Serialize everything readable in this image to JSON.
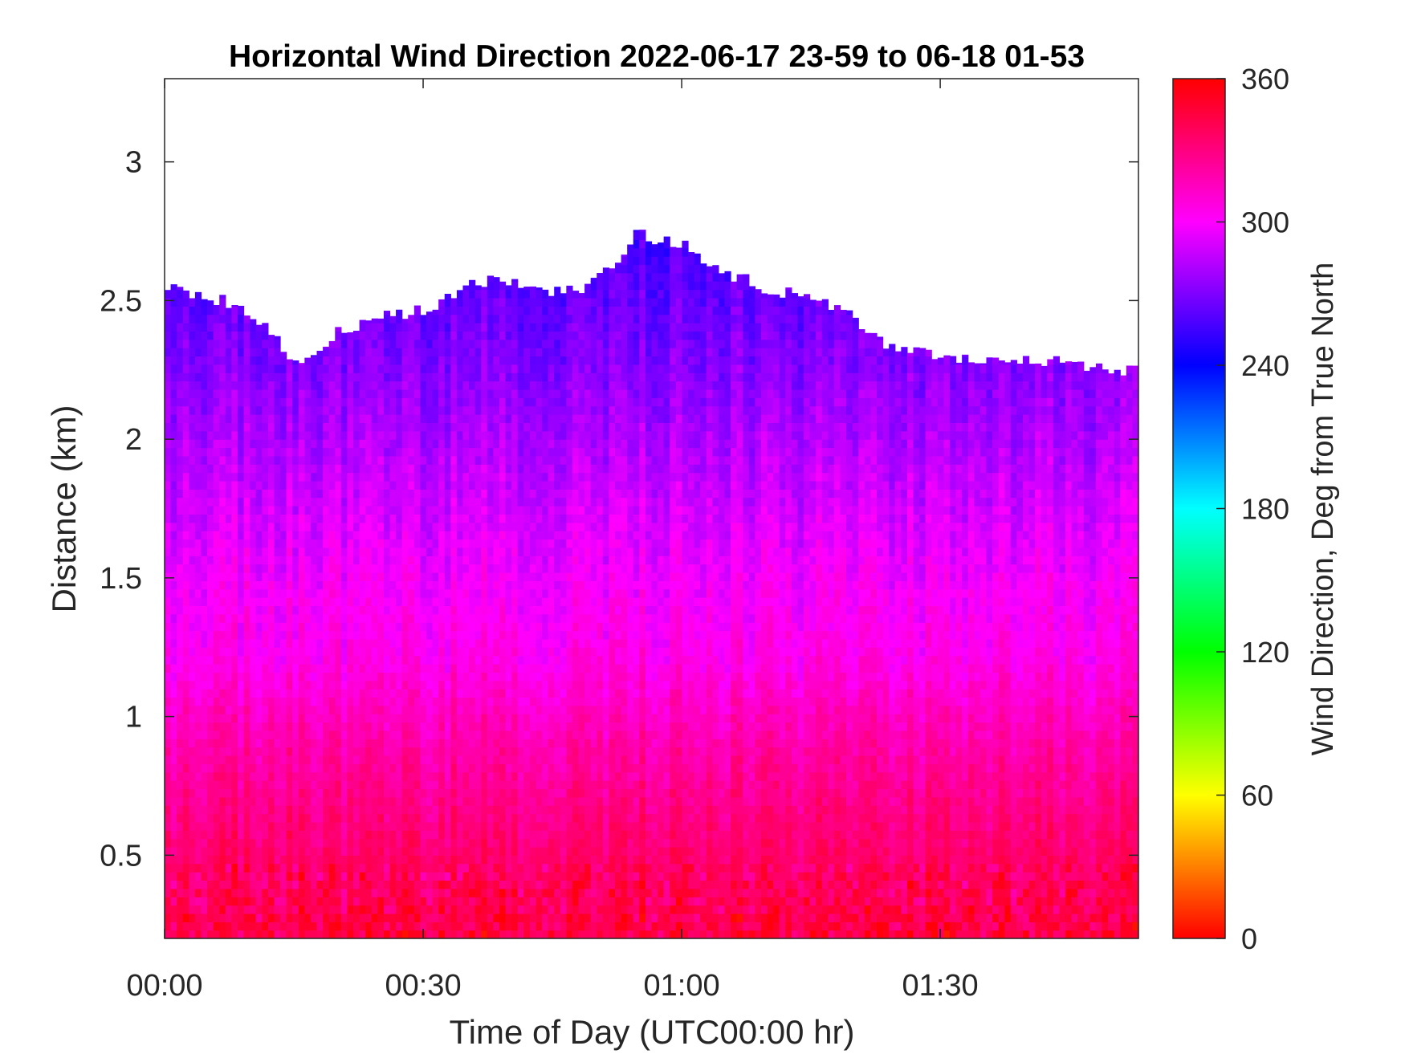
{
  "chart_data": {
    "type": "heatmap",
    "title": "Horizontal Wind Direction 2022-06-17 23-59 to 06-18 01-53",
    "xlabel": "Time of Day (UTC00:00 hr)",
    "ylabel": "Distance (km)",
    "xlim": [
      "00:00",
      "01:53"
    ],
    "ylim": [
      0.2,
      3.3
    ],
    "x_ticks": [
      "00:00",
      "00:30",
      "01:00",
      "01:30"
    ],
    "y_ticks": [
      0.5,
      1,
      1.5,
      2,
      2.5,
      3
    ],
    "y_tick_labels": [
      "0.5",
      "1",
      "1.5",
      "2",
      "2.5",
      "3"
    ],
    "colorbar": {
      "label": "Wind Direction, Deg from True North",
      "range": [
        0,
        360
      ],
      "ticks": [
        0,
        60,
        120,
        180,
        240,
        300,
        360
      ],
      "tick_labels": [
        "0",
        "60",
        "120",
        "180",
        "240",
        "300",
        "360"
      ],
      "colormap": "hsv"
    },
    "data_top_km": {
      "time": [
        "00:00",
        "00:05",
        "00:10",
        "00:15",
        "00:20",
        "00:25",
        "00:30",
        "00:35",
        "00:40",
        "00:45",
        "00:50",
        "00:55",
        "01:00",
        "01:05",
        "01:10",
        "01:15",
        "01:20",
        "01:25",
        "01:30",
        "01:35",
        "01:40",
        "01:45",
        "01:50",
        "01:53"
      ],
      "values": [
        2.54,
        2.52,
        2.46,
        2.28,
        2.38,
        2.45,
        2.46,
        2.55,
        2.58,
        2.53,
        2.56,
        2.74,
        2.7,
        2.6,
        2.54,
        2.52,
        2.44,
        2.32,
        2.3,
        2.28,
        2.3,
        2.27,
        2.26,
        2.24
      ]
    },
    "direction_profile": {
      "distance_km": [
        0.2,
        0.5,
        0.9,
        1.2,
        1.5,
        1.9,
        2.3,
        2.7
      ],
      "direction_deg": [
        345,
        335,
        320,
        305,
        298,
        285,
        270,
        258
      ]
    }
  },
  "colors": {
    "axis": "#262626",
    "background": "#ffffff"
  }
}
